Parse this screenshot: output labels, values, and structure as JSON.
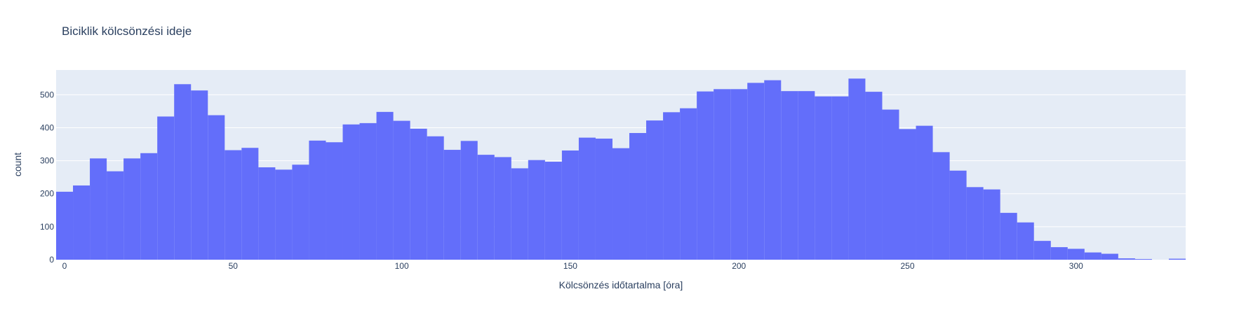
{
  "chart_data": {
    "type": "bar",
    "title": "Biciklik kölcsönzési ideje",
    "xlabel": "Kölcsönzés időtartalma [óra]",
    "ylabel": "count",
    "bin_width": 5,
    "bin_start": -2.5,
    "xlim": [
      -2.5,
      332.5
    ],
    "ylim": [
      0,
      575
    ],
    "xticks": [
      0,
      50,
      100,
      150,
      200,
      250,
      300
    ],
    "yticks": [
      0,
      100,
      200,
      300,
      400,
      500
    ],
    "bin_centers": [
      0,
      5,
      10,
      15,
      20,
      25,
      30,
      35,
      40,
      45,
      50,
      55,
      60,
      65,
      70,
      75,
      80,
      85,
      90,
      95,
      100,
      105,
      110,
      115,
      120,
      125,
      130,
      135,
      140,
      145,
      150,
      155,
      160,
      165,
      170,
      175,
      180,
      185,
      190,
      195,
      200,
      205,
      210,
      215,
      220,
      225,
      230,
      235,
      240,
      245,
      250,
      255,
      260,
      265,
      270,
      275,
      280,
      285,
      290,
      295,
      300,
      305,
      310,
      315,
      320,
      325,
      330
    ],
    "values": [
      206,
      225,
      307,
      268,
      307,
      323,
      434,
      532,
      513,
      438,
      332,
      339,
      280,
      273,
      288,
      361,
      356,
      410,
      414,
      448,
      421,
      397,
      374,
      333,
      360,
      318,
      311,
      277,
      302,
      297,
      331,
      370,
      367,
      338,
      384,
      422,
      447,
      459,
      510,
      517,
      517,
      536,
      544,
      511,
      511,
      495,
      495,
      549,
      509,
      455,
      396,
      406,
      326,
      270,
      220,
      213,
      142,
      113,
      57,
      38,
      33,
      22,
      18,
      4,
      2,
      0,
      3
    ],
    "grid": true,
    "legend": "none",
    "bar_color": "#636efa",
    "plot_bg": "#e5ecf6"
  }
}
